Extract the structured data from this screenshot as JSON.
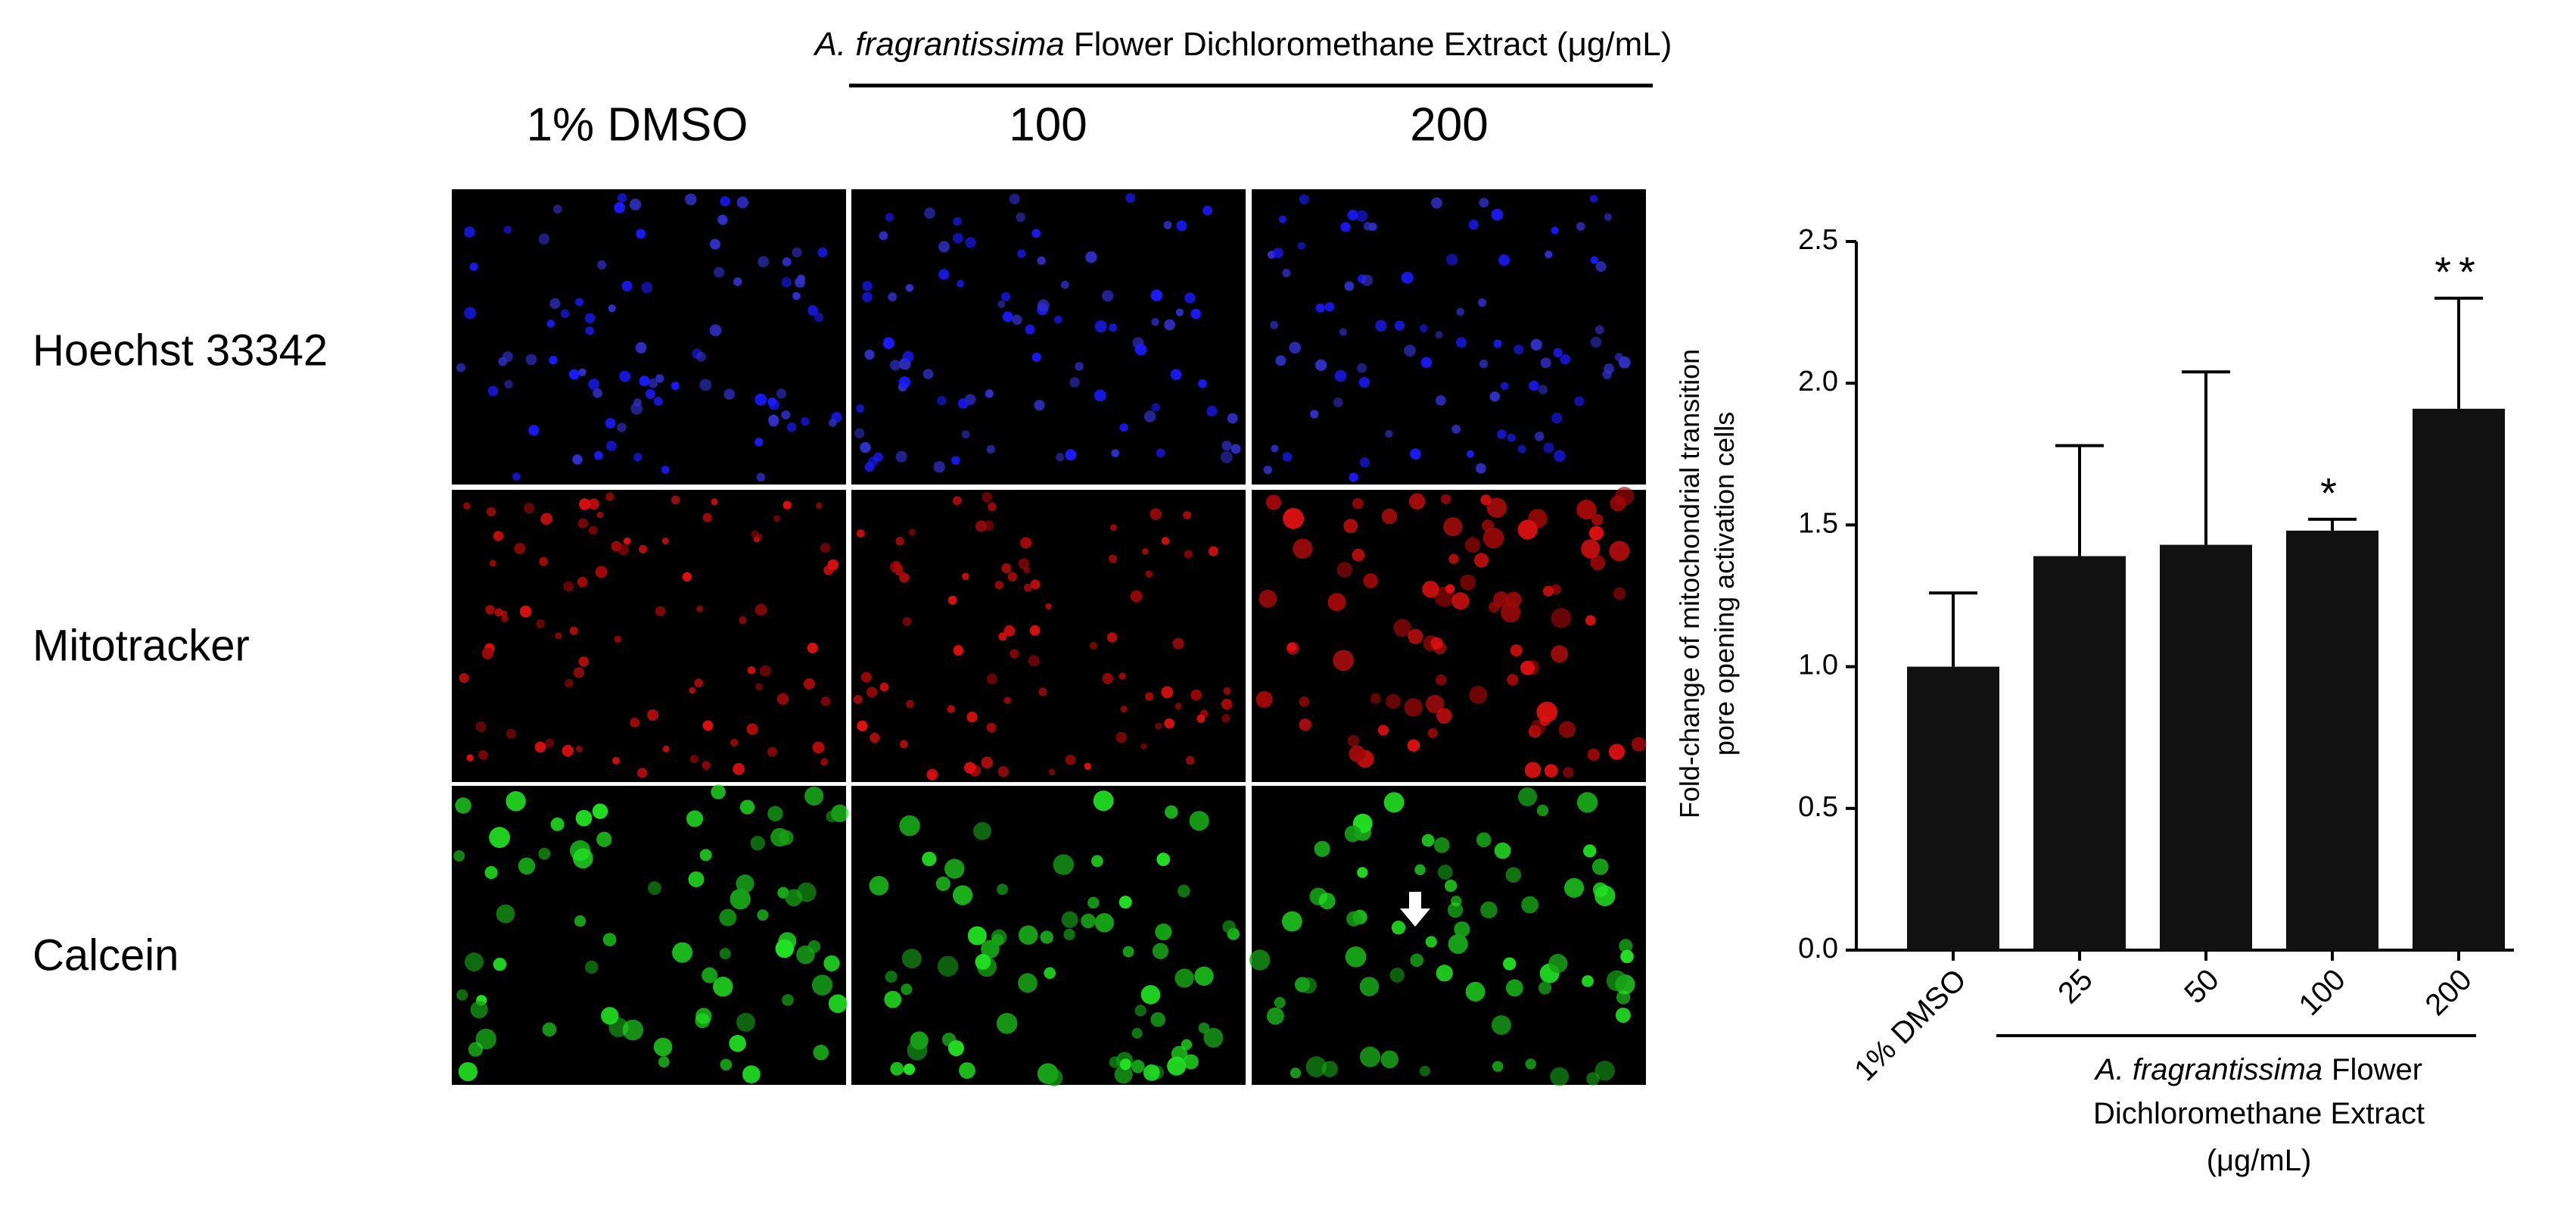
{
  "panels": {
    "header_species": "A. fragrantissima",
    "header_rest": "Flower Dichloromethane Extract (μg/mL)",
    "columns": [
      "1% DMSO",
      "100",
      "200"
    ],
    "rows": [
      "Hoechst 33342",
      "Mitotracker",
      "Calcein"
    ]
  },
  "chart_data": {
    "type": "bar",
    "categories": [
      "1% DMSO",
      "25",
      "50",
      "100",
      "200"
    ],
    "values": [
      1.0,
      1.39,
      1.43,
      1.48,
      1.91
    ],
    "errors": [
      0.26,
      0.39,
      0.61,
      0.04,
      0.39
    ],
    "significance": [
      null,
      null,
      null,
      "*",
      "**"
    ],
    "color": "#111111",
    "ylabel_lines": [
      "Fold-change of mitochondrial transition",
      "pore opening activation cells"
    ],
    "group_label": {
      "species": "A. fragrantissima",
      "lines": [
        "Flower",
        "Dichloromethane Extract",
        "(μg/mL)"
      ]
    },
    "ylim": [
      0,
      2.5
    ],
    "yticks": [
      {
        "value": 0,
        "label": "0.0"
      },
      {
        "value": 0.5,
        "label": "0.5"
      },
      {
        "value": 1,
        "label": "1.0"
      },
      {
        "value": 1.5,
        "label": "1.5"
      },
      {
        "value": 2,
        "label": "2.0"
      },
      {
        "value": 2.5,
        "label": "2.5"
      }
    ]
  }
}
